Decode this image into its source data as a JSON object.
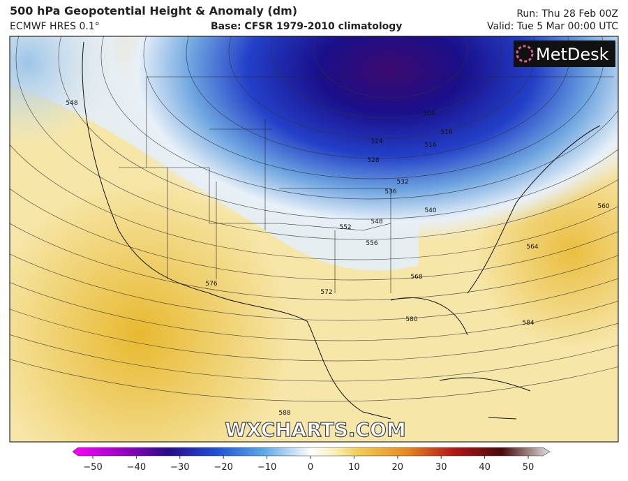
{
  "header": {
    "title": "500 hPa Geopotential Height & Anomaly (dm)",
    "model": "ECMWF HRES 0.1°",
    "base": "Base: CFSR 1979-2010 climatology",
    "run": "Run: Thu 28 Feb 00Z",
    "valid": "Valid: Tue 5 Mar 00:00 UTC"
  },
  "logo": "MetDesk",
  "watermark": "WXCHARTS.COM",
  "contour_labels": [
    "548",
    "508",
    "516",
    "516",
    "524",
    "528",
    "532",
    "536",
    "540",
    "548",
    "552",
    "556",
    "560",
    "564",
    "568",
    "572",
    "576",
    "580",
    "584",
    "588"
  ],
  "colorbar": {
    "ticks": [
      "−50",
      "−40",
      "−30",
      "−20",
      "−10",
      "0",
      "10",
      "20",
      "30",
      "40",
      "50"
    ]
  }
}
